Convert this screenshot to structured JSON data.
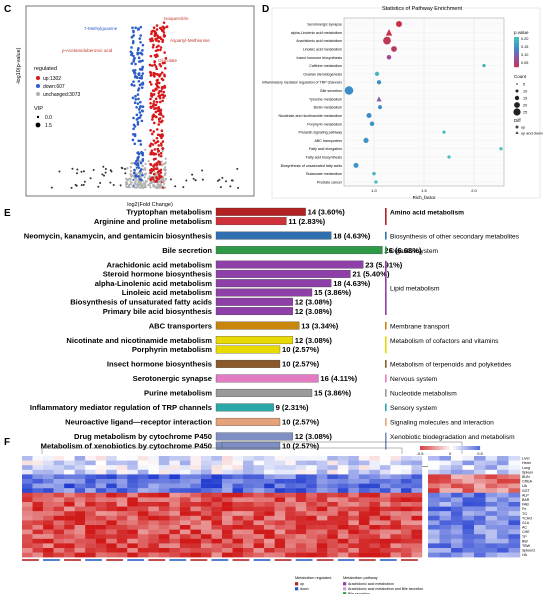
{
  "panel_labels": [
    "C",
    "D",
    "E",
    "F"
  ],
  "chart_data": [
    {
      "panel": "C",
      "type": "scatter",
      "xlabel": "log2(Fold Change)",
      "ylabel": "-log10(p-value)",
      "legend": {
        "title": "regulated",
        "entries": [
          {
            "label": "up:1302",
            "color": "#d7191c"
          },
          {
            "label": "down:607",
            "color": "#2b5cc8"
          },
          {
            "label": "unchanged:3073",
            "color": "#b0b0b0"
          }
        ],
        "vip_title": "VIP",
        "vip_entries": [
          "0.0",
          "1.5"
        ],
        "placement": "left"
      },
      "annotations": [
        "Isoquercitrin",
        "7-Methylguanine",
        "Aspartyl-Methionine",
        "p-Acetamidobenzoic acid",
        "Glucolate"
      ],
      "groups": [
        {
          "name": "up",
          "count": 1302,
          "color": "#d7191c"
        },
        {
          "name": "down",
          "count": 607,
          "color": "#2b5cc8"
        },
        {
          "name": "unchanged",
          "count": 3073,
          "color": "#b0b0b0"
        }
      ]
    },
    {
      "panel": "D",
      "type": "scatter",
      "title": "Statistics of Pathway Enrichment",
      "xlabel": "Rich_factor",
      "xticks": [
        1.0,
        1.5,
        2.0
      ],
      "xlim": [
        0.7,
        2.3
      ],
      "legend_pvalue": {
        "title": "p.value",
        "ticks": [
          "0.20",
          "0.15",
          "0.10",
          "0.05"
        ],
        "placement": "right"
      },
      "legend_count": {
        "title": "Count",
        "ticks": [
          "5",
          "10",
          "15",
          "20",
          "25"
        ]
      },
      "legend_diff": {
        "title": "Diff",
        "entries": [
          "up",
          "up and down"
        ]
      },
      "categories": [
        "Serotonergic synapse",
        "alpha-Linolenic acid metabolism",
        "Arachidonic acid metabolism",
        "Linoleic acid metabolism",
        "Insect hormone biosynthesis",
        "Caffeine metabolism",
        "Ovarian steroidogenesis",
        "Inflammatory mediator regulation of TRP channels",
        "Bile secretion",
        "Tyrosine metabolism",
        "Biotin metabolism",
        "Nicotinate and nicotinamide metabolism",
        "Porphyrin metabolism",
        "Prolactin signaling pathway",
        "ABC transporters",
        "Fatty acid elongation",
        "Fatty acid biosynthesis",
        "Biosynthesis of unsaturated fatty acids",
        "Butanoate metabolism",
        "Prostate cancer"
      ],
      "points": [
        {
          "x": 1.25,
          "count": 16,
          "p": 0.03,
          "diff": "up"
        },
        {
          "x": 1.15,
          "count": 18,
          "p": 0.03,
          "diff": "up and down"
        },
        {
          "x": 1.13,
          "count": 23,
          "p": 0.04,
          "diff": "up"
        },
        {
          "x": 1.2,
          "count": 15,
          "p": 0.05,
          "diff": "up"
        },
        {
          "x": 1.15,
          "count": 10,
          "p": 0.08,
          "diff": "up"
        },
        {
          "x": 2.1,
          "count": 5,
          "p": 0.19,
          "diff": "up"
        },
        {
          "x": 1.03,
          "count": 9,
          "p": 0.2,
          "diff": "up"
        },
        {
          "x": 1.05,
          "count": 9,
          "p": 0.15,
          "diff": "up"
        },
        {
          "x": 0.75,
          "count": 26,
          "p": 0.15,
          "diff": "up"
        },
        {
          "x": 1.05,
          "count": 12,
          "p": 0.1,
          "diff": "up and down"
        },
        {
          "x": 1.06,
          "count": 8,
          "p": 0.15,
          "diff": "up"
        },
        {
          "x": 0.95,
          "count": 12,
          "p": 0.15,
          "diff": "up"
        },
        {
          "x": 0.98,
          "count": 10,
          "p": 0.16,
          "diff": "up"
        },
        {
          "x": 1.7,
          "count": 5,
          "p": 0.21,
          "diff": "up"
        },
        {
          "x": 0.92,
          "count": 13,
          "p": 0.16,
          "diff": "up"
        },
        {
          "x": 2.4,
          "count": 5,
          "p": 0.21,
          "diff": "up"
        },
        {
          "x": 1.75,
          "count": 5,
          "p": 0.21,
          "diff": "up"
        },
        {
          "x": 0.82,
          "count": 12,
          "p": 0.16,
          "diff": "up"
        },
        {
          "x": 1.0,
          "count": 6,
          "p": 0.2,
          "diff": "up"
        },
        {
          "x": 1.02,
          "count": 5,
          "p": 0.21,
          "diff": "up"
        }
      ]
    },
    {
      "panel": "E",
      "type": "bar",
      "orientation": "horizontal",
      "xlim": [
        0,
        10
      ],
      "xticks": [
        "0%",
        "10%"
      ],
      "groups": [
        {
          "name": "Amino acid metabolism",
          "color": "#b22222",
          "rows": [
            {
              "label": "Tryptophan metabolism",
              "value": 14,
              "text": "14 (3.60%)",
              "color": "#b22222"
            },
            {
              "label": "Arginine and proline metabolism",
              "value": 11,
              "text": "11 (2.83%)",
              "color": "#d0323c"
            }
          ]
        },
        {
          "name": "Biosynthesis of other secondary metabolites",
          "color": "#2f6fb0",
          "rows": [
            {
              "label": "Neomycin, kanamycin, and gentamicin biosynthesis",
              "value": 18,
              "text": "18 (4.63%)",
              "color": "#2f6fb0"
            }
          ]
        },
        {
          "name": "Digestivesystem",
          "color": "#2e9a48",
          "rows": [
            {
              "label": "Bile secretion",
              "value": 26,
              "text": "26 (6.68%)",
              "color": "#2e9a48"
            }
          ]
        },
        {
          "name": "Lipid metabolism",
          "color": "#8e3fa8",
          "rows": [
            {
              "label": "Arachidonic acid metabolism",
              "value": 23,
              "text": "23 (5.91%)",
              "color": "#8e3fa8"
            },
            {
              "label": "Steroid hormone biosynthesis",
              "value": 21,
              "text": "21 (5.40%)",
              "color": "#8e3fa8"
            },
            {
              "label": "alpha-Linolenic acid metabolism",
              "value": 18,
              "text": "18 (4.63%)",
              "color": "#8e3fa8"
            },
            {
              "label": "Linoleic acid metabolism",
              "value": 15,
              "text": "15 (3.86%)",
              "color": "#8e3fa8"
            },
            {
              "label": "Biosynthesis of unsaturated fatty acids",
              "value": 12,
              "text": "12 (3.08%)",
              "color": "#8e3fa8"
            },
            {
              "label": "Primary bile acid biosynthesis",
              "value": 12,
              "text": "12 (3.08%)",
              "color": "#8e3fa8"
            }
          ]
        },
        {
          "name": "Membrane transport",
          "color": "#c8860d",
          "rows": [
            {
              "label": "ABC transporters",
              "value": 13,
              "text": "13 (3.34%)",
              "color": "#c8860d"
            }
          ]
        },
        {
          "name": "Metabolism of cofactors and vitamins",
          "color": "#e8d900",
          "rows": [
            {
              "label": "Nicotinate and nicotinamide metabolism",
              "value": 12,
              "text": "12 (3.08%)",
              "color": "#e8d900"
            },
            {
              "label": "Porphyrin metabolism",
              "value": 10,
              "text": "10 (2.57%)",
              "color": "#e8d900"
            }
          ]
        },
        {
          "name": "Metabolism of terpenoids and polyketides",
          "color": "#8b5a2b",
          "rows": [
            {
              "label": "Insect hormone biosynthesis",
              "value": 10,
              "text": "10 (2.57%)",
              "color": "#8b5a2b"
            }
          ]
        },
        {
          "name": "Nervous system",
          "color": "#e37ac4",
          "rows": [
            {
              "label": "Serotonergic synapse",
              "value": 16,
              "text": "16 (4.11%)",
              "color": "#e37ac4"
            }
          ]
        },
        {
          "name": "Nucleotide metabolism",
          "color": "#9a9a9a",
          "rows": [
            {
              "label": "Purine metabolism",
              "value": 15,
              "text": "15 (3.86%)",
              "color": "#9a9a9a"
            }
          ]
        },
        {
          "name": "Sensory system",
          "color": "#2aa7a7",
          "rows": [
            {
              "label": "Inflammatory mediator regulation of TRP channels",
              "value": 9,
              "text": "9 (2.31%)",
              "color": "#2aa7a7"
            }
          ]
        },
        {
          "name": "Signaling molecules and interaction",
          "color": "#e3a27a",
          "rows": [
            {
              "label": "Neuroactive ligand—receptor interaction",
              "value": 10,
              "text": "10 (2.57%)",
              "color": "#e3a27a"
            }
          ]
        },
        {
          "name": "Xenobiotic biodegradation and metabolism",
          "color": "#7f8fc4",
          "rows": [
            {
              "label": "Drug metabolism by cytochrome P450",
              "value": 12,
              "text": "12 (3.08%)",
              "color": "#7f8fc4"
            },
            {
              "label": "Metabolism of xenobiotics by cytochrome P450",
              "value": 10,
              "text": "10 (2.57%)",
              "color": "#7f8fc4"
            }
          ]
        }
      ]
    },
    {
      "panel": "F",
      "type": "heatmap",
      "color_scale": {
        "low": "#1f3bd0",
        "mid": "#ffffff",
        "high": "#d01a1a",
        "ticks": [
          "-0.5",
          "0",
          "0.5"
        ],
        "placement": "top-right"
      },
      "row_labels": [
        "Liver",
        "Heart",
        "Lung",
        "Spleen",
        "BUN",
        "CREA",
        "UA",
        "GGT",
        "ALP",
        "BAR",
        "FAB",
        "Fe",
        "TG",
        "TCHO",
        "GLU",
        "AC",
        "CHE",
        "TP",
        "BW",
        "TBW",
        "Spleen2",
        "HA"
      ],
      "group_legend": {
        "titles": [
          "Metabolism regulated",
          "Metabolism pathway"
        ],
        "entries": [
          {
            "label": "up",
            "color": "#b22222"
          },
          {
            "label": "down",
            "color": "#2b5cc8"
          },
          {
            "label": "Arachidonic acid metabolism",
            "color": "#8e3fa8"
          },
          {
            "label": "Arachidonic acid metabolism and Bile secretion",
            "color": "#c9a4d8"
          },
          {
            "label": "Bile secretion",
            "color": "#2e9a48"
          }
        ]
      },
      "left_block_cols": 38,
      "right_block_cols": 8,
      "block_pattern": [
        {
          "rows": [
            0,
            1,
            2,
            3
          ],
          "left": -0.15,
          "right": -0.25
        },
        {
          "rows": [
            4,
            5,
            6,
            7
          ],
          "left": -0.7,
          "right": 0.6
        },
        {
          "rows": [
            8,
            9,
            10,
            11,
            12,
            13,
            14,
            15,
            16,
            17,
            18,
            19,
            20,
            21
          ],
          "left": 0.75,
          "right": -0.6
        }
      ]
    }
  ]
}
